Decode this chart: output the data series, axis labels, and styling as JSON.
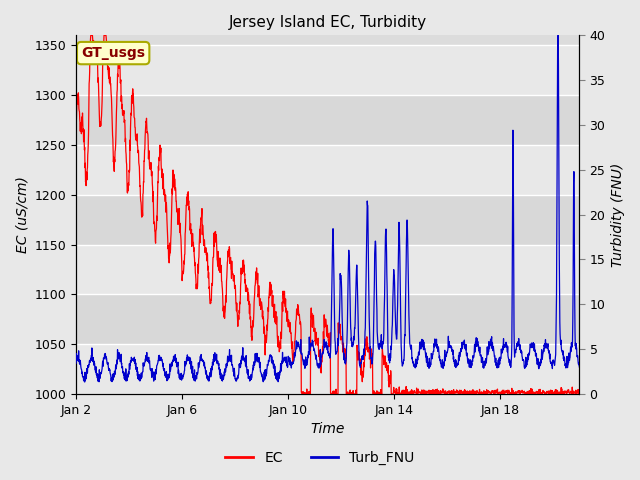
{
  "title": "Jersey Island EC, Turbidity",
  "xlabel": "Time",
  "ylabel_left": "EC (uS/cm)",
  "ylabel_right": "Turbidity (FNU)",
  "legend_label": "GT_usgs",
  "line1_label": "EC",
  "line2_label": "Turb_FNU",
  "line1_color": "#FF0000",
  "line2_color": "#0000CC",
  "ylim_left": [
    1000,
    1360
  ],
  "ylim_right": [
    0,
    40
  ],
  "yticks_left": [
    1000,
    1050,
    1100,
    1150,
    1200,
    1250,
    1300,
    1350
  ],
  "yticks_right": [
    0,
    5,
    10,
    15,
    20,
    25,
    30,
    35,
    40
  ],
  "xtick_positions": [
    0,
    4,
    8,
    12,
    16
  ],
  "xtick_labels": [
    "Jan 2",
    "Jan 6",
    "Jan 10",
    "Jan 14",
    "Jan 18"
  ],
  "n_days": 20,
  "xlim": [
    0,
    19
  ],
  "background_color": "#E8E8E8",
  "plot_bg_color": "#DCDCDC",
  "grid_colors": [
    "#C8C8C8",
    "#E0E0E0"
  ],
  "grid_color": "#FFFFFF",
  "annotation_bg": "#FFFFCC",
  "annotation_text_color": "#880000",
  "annotation_border_color": "#AAAA00",
  "title_fontsize": 11,
  "axis_label_fontsize": 10,
  "tick_fontsize": 9,
  "legend_fontsize": 10,
  "linewidth": 0.9
}
